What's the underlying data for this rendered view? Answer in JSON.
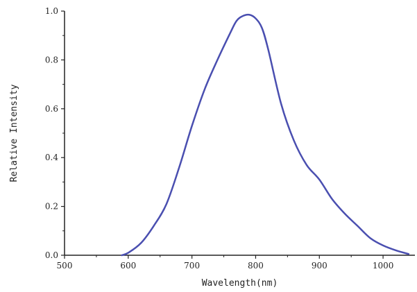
{
  "chart_data": {
    "type": "line",
    "title": "",
    "xlabel": "Wavelength(nm)",
    "ylabel": "Relative Intensity",
    "xlim": [
      500,
      1050
    ],
    "ylim": [
      0,
      1.0
    ],
    "xticks": [
      "500",
      "600",
      "700",
      "800",
      "900",
      "1000"
    ],
    "yticks": [
      "0.0",
      "0.2",
      "0.4",
      "0.6",
      "0.8",
      "1.0"
    ],
    "grid": false,
    "line_color": "#4a4fb0",
    "series": [
      {
        "x": [
          590,
          600,
          620,
          640,
          660,
          680,
          700,
          720,
          740,
          760,
          770,
          780,
          790,
          800,
          810,
          820,
          840,
          860,
          880,
          900,
          920,
          940,
          960,
          980,
          1000,
          1020,
          1040
        ],
        "values": [
          0.0,
          0.01,
          0.05,
          0.12,
          0.21,
          0.36,
          0.53,
          0.68,
          0.8,
          0.91,
          0.96,
          0.98,
          0.985,
          0.97,
          0.93,
          0.84,
          0.62,
          0.47,
          0.37,
          0.31,
          0.23,
          0.17,
          0.12,
          0.07,
          0.04,
          0.02,
          0.005
        ]
      }
    ]
  }
}
